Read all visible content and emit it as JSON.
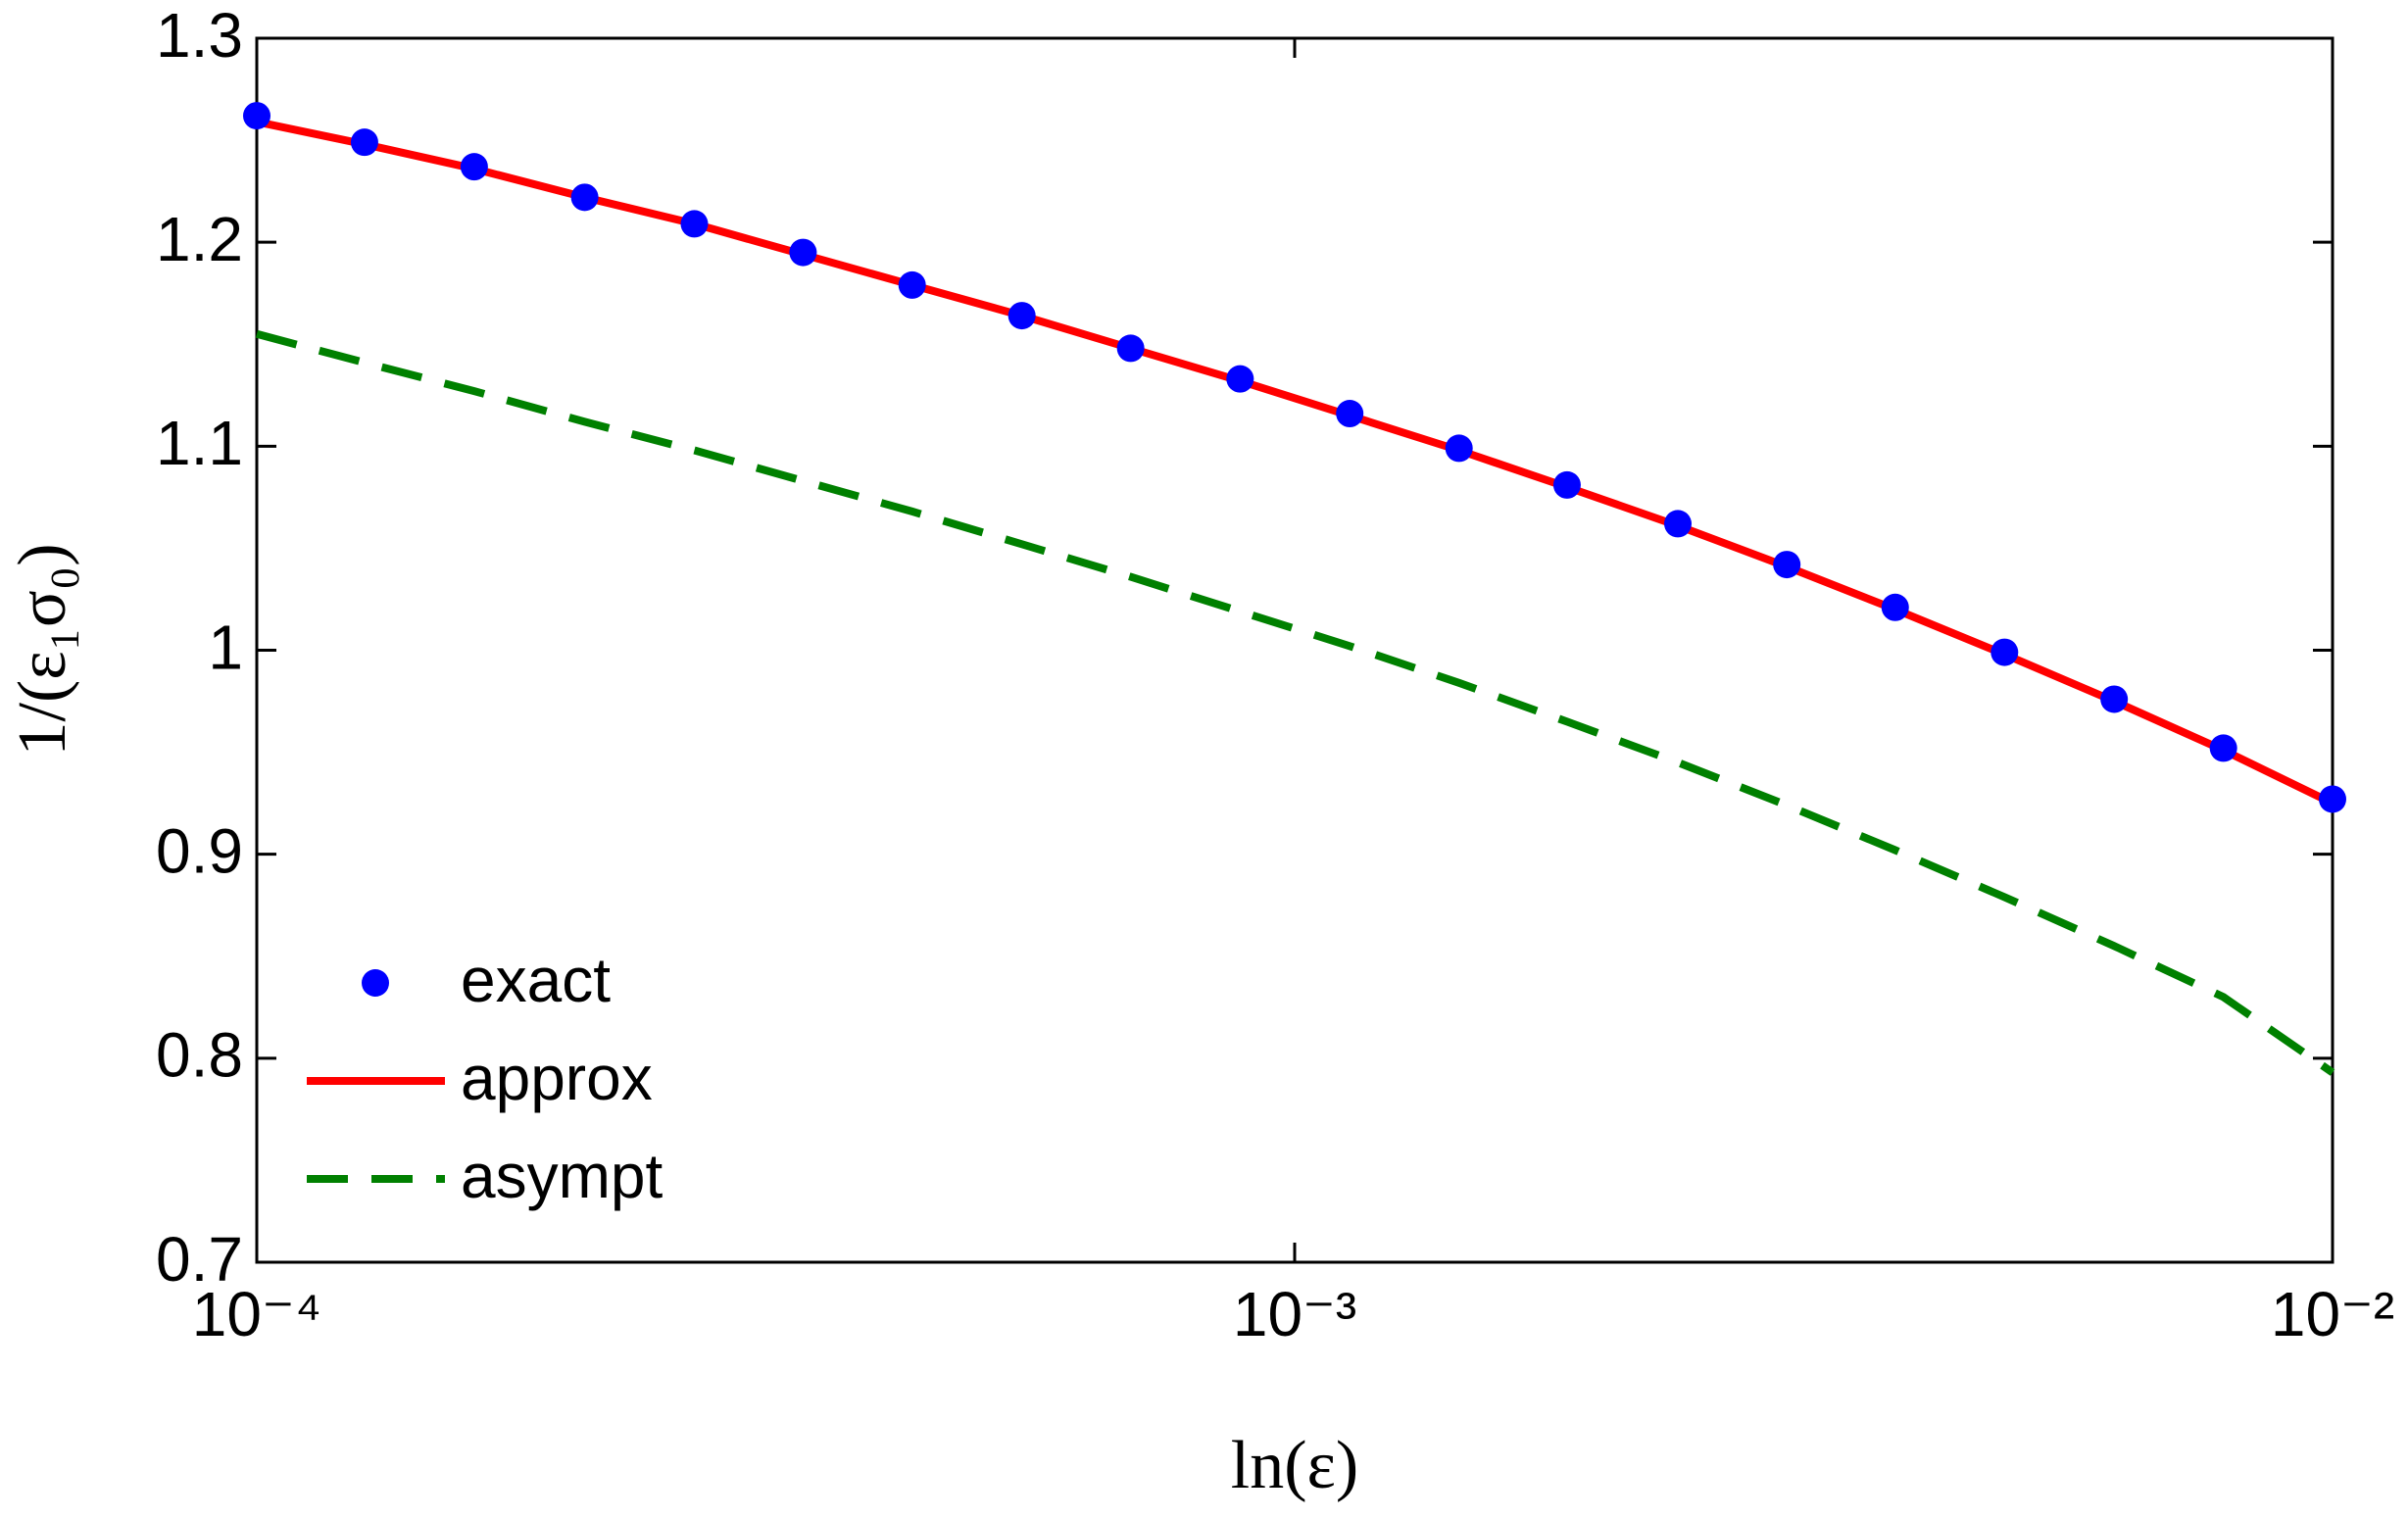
{
  "chart_data": {
    "type": "line",
    "x_label": "ln(ε)",
    "y_label": "1/(ε₁σ₀)",
    "xscale": "log",
    "xlim": [
      0.0001,
      0.01
    ],
    "xticks": [
      {
        "value": 0.0001,
        "label": "10⁻⁴"
      },
      {
        "value": 0.001,
        "label": "10⁻³"
      },
      {
        "value": 0.01,
        "label": "10⁻²"
      }
    ],
    "ylim": [
      0.7,
      1.3
    ],
    "yticks": [
      0.7,
      0.8,
      0.9,
      1,
      1.1,
      1.2,
      1.3
    ],
    "legend": "lower left",
    "x": [
      0.0001,
      0.000127,
      0.000162,
      0.000207,
      0.000264,
      0.000336,
      0.000428,
      0.000546,
      0.000695,
      0.000886,
      0.00113,
      0.00144,
      0.00183,
      0.00234,
      0.00298,
      0.00379,
      0.00483,
      0.00616,
      0.00785,
      0.01
    ],
    "series": [
      {
        "name": "exact",
        "color": "#0000ff",
        "style": "markers",
        "values": [
          1.262,
          1.249,
          1.237,
          1.222,
          1.209,
          1.195,
          1.179,
          1.164,
          1.148,
          1.133,
          1.116,
          1.099,
          1.081,
          1.062,
          1.042,
          1.021,
          0.999,
          0.976,
          0.952,
          0.927
        ]
      },
      {
        "name": "approx",
        "color": "#ff0000",
        "style": "solid",
        "values": [
          1.259,
          1.248,
          1.236,
          1.222,
          1.209,
          1.194,
          1.179,
          1.164,
          1.148,
          1.132,
          1.115,
          1.098,
          1.08,
          1.061,
          1.041,
          1.02,
          0.998,
          0.975,
          0.951,
          0.925
        ]
      },
      {
        "name": "asympt",
        "color": "#008000",
        "style": "dashed",
        "values": [
          1.155,
          1.141,
          1.127,
          1.112,
          1.098,
          1.083,
          1.068,
          1.052,
          1.036,
          1.019,
          1.002,
          0.984,
          0.965,
          0.945,
          0.924,
          0.902,
          0.879,
          0.855,
          0.83,
          0.793
        ]
      }
    ]
  }
}
